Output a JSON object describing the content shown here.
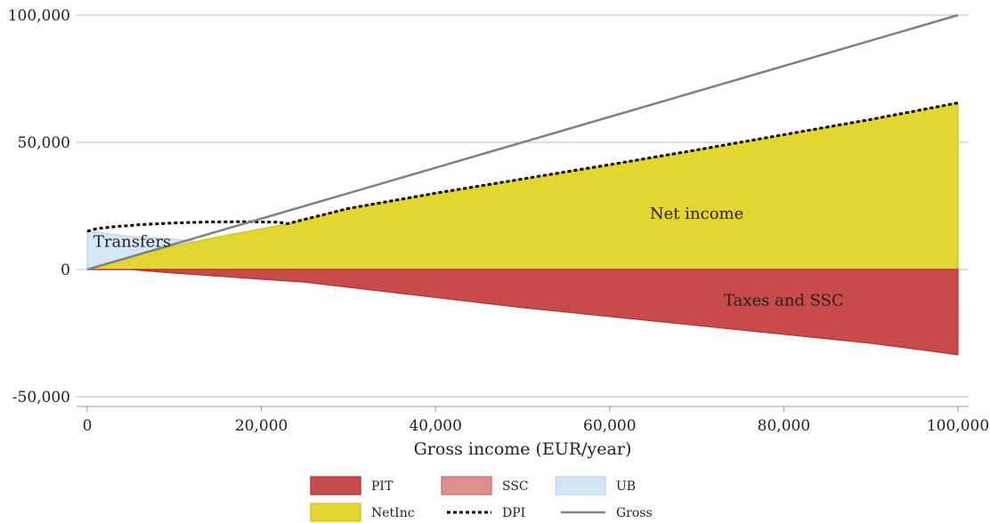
{
  "chart_data": {
    "type": "area",
    "title": "",
    "xlabel": "Gross income (EUR/year)",
    "ylabel": "",
    "xlim": [
      0,
      100000
    ],
    "ylim": [
      -50000,
      100000
    ],
    "x_ticks": [
      0,
      20000,
      40000,
      60000,
      80000,
      100000
    ],
    "x_tick_labels": [
      "0",
      "20,000",
      "40,000",
      "60,000",
      "80,000",
      "100,000"
    ],
    "y_ticks": [
      -50000,
      0,
      50000,
      100000
    ],
    "y_tick_labels": [
      "-50,000",
      "0",
      "50,000",
      "100,000"
    ],
    "grid": "horizontal",
    "legend_position": "bottom",
    "annotations": [
      {
        "text": "Transfers",
        "x": 700,
        "y": 11000
      },
      {
        "text": "Net income",
        "x": 70000,
        "y": 22000
      },
      {
        "text": "Taxes and SSC",
        "x": 80000,
        "y": -12000
      }
    ],
    "series": [
      {
        "name": "UB",
        "kind": "area",
        "color": "#d3e6f3",
        "x": [
          0,
          5000,
          10000,
          15000,
          18000,
          20000
        ],
        "y": [
          15000,
          13000,
          12000,
          10000,
          3000,
          0
        ]
      },
      {
        "name": "NetInc",
        "kind": "area",
        "color": "#e3d630",
        "x": [
          0,
          5000,
          10000,
          15000,
          20000,
          23000,
          30000,
          40000,
          50000,
          60000,
          70000,
          80000,
          90000,
          100000
        ],
        "y": [
          0,
          5000,
          9200,
          12800,
          16000,
          18000,
          24000,
          30000,
          35600,
          41200,
          47000,
          53000,
          59000,
          65500
        ]
      },
      {
        "name": "SSC",
        "kind": "area",
        "color": "#dd8e8e",
        "x": [
          0,
          5000,
          10000,
          20000,
          30000,
          40000,
          50000,
          60000,
          70000,
          80000,
          90000,
          100000
        ],
        "y": [
          0,
          0,
          -1400,
          -2800,
          -4300,
          -5700,
          -7200,
          -8600,
          -10100,
          -11500,
          -13000,
          -14200
        ]
      },
      {
        "name": "PIT",
        "kind": "area",
        "color": "#c94a4a",
        "x": [
          0,
          5000,
          10000,
          20000,
          25000,
          30000,
          40000,
          50000,
          60000,
          70000,
          80000,
          90000,
          100000
        ],
        "y": [
          0,
          0,
          -1400,
          -3800,
          -5000,
          -7000,
          -11000,
          -15000,
          -18500,
          -22000,
          -25500,
          -29000,
          -33500
        ]
      },
      {
        "name": "DPI",
        "kind": "line",
        "style": "dotted",
        "color": "#000000",
        "x": [
          0,
          1000,
          3000,
          6000,
          10000,
          14000,
          18000,
          22000,
          23000,
          30000,
          40000,
          50000,
          60000,
          70000,
          80000,
          90000,
          100000
        ],
        "y": [
          15000,
          16000,
          16800,
          17600,
          18300,
          18700,
          18800,
          18600,
          18000,
          24000,
          30000,
          35600,
          41200,
          47000,
          53000,
          59000,
          65500
        ]
      },
      {
        "name": "Gross",
        "kind": "line",
        "style": "solid",
        "color": "#808080",
        "x": [
          0,
          100000
        ],
        "y": [
          0,
          100000
        ]
      }
    ],
    "legend": [
      {
        "name": "PIT",
        "kind": "patch",
        "color": "#c94a4a",
        "edge": "#b83030"
      },
      {
        "name": "SSC",
        "kind": "patch",
        "color": "#dd8e8e",
        "edge": "#d06e6e"
      },
      {
        "name": "UB",
        "kind": "patch",
        "color": "#d3e6f3",
        "edge": "#bcd6ea"
      },
      {
        "name": "NetInc",
        "kind": "patch",
        "color": "#e3d630",
        "edge": "#cfc020"
      },
      {
        "name": "DPI",
        "kind": "dotted-line",
        "color": "#000000"
      },
      {
        "name": "Gross",
        "kind": "solid-line",
        "color": "#808080"
      }
    ]
  }
}
